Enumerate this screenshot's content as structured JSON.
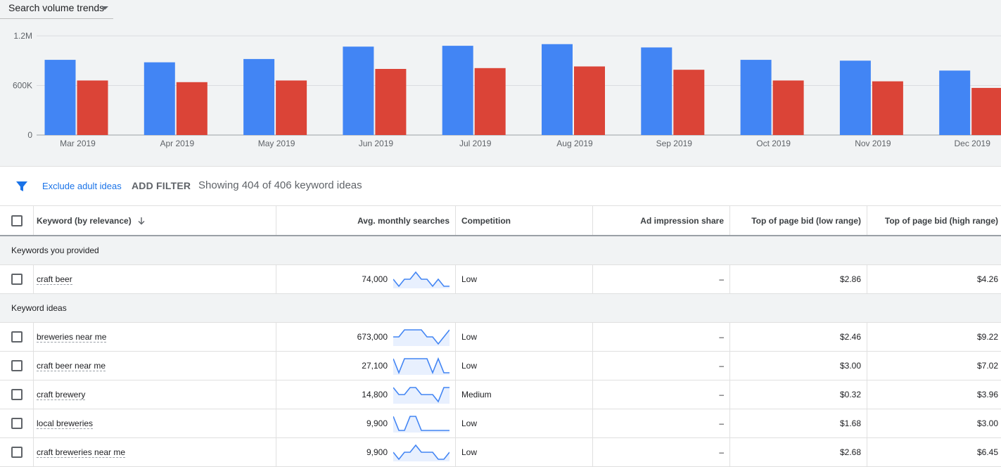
{
  "trend_dropdown": {
    "label": "Search volume trends"
  },
  "colors": {
    "series_a": "#4285f4",
    "series_b": "#db4437",
    "accent": "#1a73e8"
  },
  "chart_data": {
    "type": "bar",
    "title": "",
    "categories": [
      "Mar 2019",
      "Apr 2019",
      "May 2019",
      "Jun 2019",
      "Jul 2019",
      "Aug 2019",
      "Sep 2019",
      "Oct 2019",
      "Nov 2019",
      "Dec 2019"
    ],
    "series": [
      {
        "values": [
          910000,
          880000,
          920000,
          1070000,
          1080000,
          1100000,
          1060000,
          910000,
          900000,
          780000
        ]
      },
      {
        "values": [
          660000,
          640000,
          660000,
          800000,
          810000,
          830000,
          790000,
          660000,
          650000,
          570000
        ]
      }
    ],
    "yticks": [
      "0",
      "600K",
      "1.2M"
    ],
    "ylim": [
      0,
      1200000
    ],
    "grid": true
  },
  "filter_bar": {
    "icon": "filter-icon",
    "exclude_label": "Exclude adult ideas",
    "add_filter_label": "ADD FILTER",
    "showing_text": "Showing 404 of 406 keyword ideas"
  },
  "table": {
    "headers": {
      "keyword": "Keyword (by relevance)",
      "avg": "Avg. monthly searches",
      "competition": "Competition",
      "impression": "Ad impression share",
      "bid_low": "Top of page bid (low range)",
      "bid_high": "Top of page bid (high range)"
    },
    "group_provided": "Keywords you provided",
    "group_ideas": "Keyword ideas",
    "provided": [
      {
        "keyword": "craft beer",
        "avg": "74,000",
        "competition": "Low",
        "impression": "–",
        "bid_low": "$2.86",
        "bid_high": "$4.26",
        "trend": [
          2,
          0,
          2,
          2,
          4,
          2,
          2,
          0,
          2,
          0,
          0
        ]
      }
    ],
    "ideas": [
      {
        "keyword": "breweries near me",
        "avg": "673,000",
        "competition": "Low",
        "impression": "–",
        "bid_low": "$2.46",
        "bid_high": "$9.22",
        "trend": [
          2,
          2,
          4,
          4,
          4,
          4,
          2,
          2,
          0,
          2,
          4
        ]
      },
      {
        "keyword": "craft beer near me",
        "avg": "27,100",
        "competition": "Low",
        "impression": "–",
        "bid_low": "$3.00",
        "bid_high": "$7.02",
        "trend": [
          4,
          0,
          4,
          4,
          4,
          4,
          4,
          0,
          4,
          0,
          0
        ]
      },
      {
        "keyword": "craft brewery",
        "avg": "14,800",
        "competition": "Medium",
        "impression": "–",
        "bid_low": "$0.32",
        "bid_high": "$3.96",
        "trend": [
          4,
          2,
          2,
          4,
          4,
          2,
          2,
          2,
          0,
          4,
          4
        ]
      },
      {
        "keyword": "local breweries",
        "avg": "9,900",
        "competition": "Low",
        "impression": "–",
        "bid_low": "$1.68",
        "bid_high": "$3.00",
        "trend": [
          4,
          0,
          0,
          4,
          4,
          0,
          0,
          0,
          0,
          0,
          0
        ]
      },
      {
        "keyword": "craft breweries near me",
        "avg": "9,900",
        "competition": "Low",
        "impression": "–",
        "bid_low": "$2.68",
        "bid_high": "$6.45",
        "trend": [
          2,
          0,
          2,
          2,
          4,
          2,
          2,
          2,
          0,
          0,
          2
        ]
      }
    ]
  }
}
